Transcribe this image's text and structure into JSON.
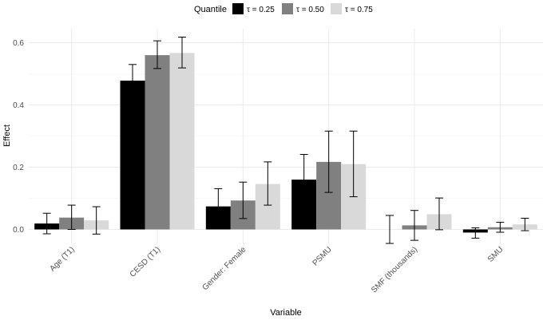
{
  "chart_data": {
    "type": "bar",
    "title": "",
    "xlabel": "Variable",
    "ylabel": "Effect",
    "ylim": [
      -0.05,
      0.655
    ],
    "yticks": [
      0.0,
      0.2,
      0.4,
      0.6
    ],
    "ytick_labels": [
      "0.0",
      "0.2",
      "0.4",
      "0.6"
    ],
    "categories": [
      "Age (T1)",
      "CESD (T1)",
      "Gender: Female",
      "PSMU",
      "SMF (thousands)",
      "SMU"
    ],
    "legend": {
      "title": "Quantile",
      "placement": "top",
      "entries": [
        "τ = 0.25",
        "τ = 0.50",
        "τ = 0.75"
      ]
    },
    "series": [
      {
        "name": "τ = 0.25",
        "color": "#000000",
        "values": [
          0.019,
          0.478,
          0.074,
          0.16,
          0.0,
          -0.01
        ],
        "lower": [
          -0.014,
          0.43,
          0.015,
          0.08,
          -0.045,
          -0.028
        ],
        "upper": [
          0.052,
          0.53,
          0.131,
          0.241,
          0.045,
          0.005
        ]
      },
      {
        "name": "τ = 0.50",
        "color": "#808080",
        "values": [
          0.038,
          0.56,
          0.093,
          0.217,
          0.013,
          0.007
        ],
        "lower": [
          0.0,
          0.517,
          0.035,
          0.119,
          -0.035,
          -0.009
        ],
        "upper": [
          0.078,
          0.606,
          0.152,
          0.316,
          0.061,
          0.023
        ]
      },
      {
        "name": "τ = 0.75",
        "color": "#d9d9d9",
        "values": [
          0.029,
          0.567,
          0.146,
          0.21,
          0.049,
          0.016
        ],
        "lower": [
          -0.015,
          0.519,
          0.078,
          0.105,
          -0.001,
          -0.004
        ],
        "upper": [
          0.073,
          0.618,
          0.217,
          0.316,
          0.101,
          0.036
        ]
      }
    ]
  }
}
